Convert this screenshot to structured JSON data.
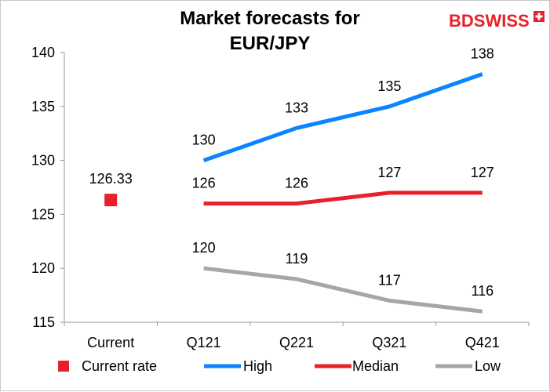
{
  "brand": {
    "logo_part1": "BD",
    "logo_part2": "SWISS",
    "logo_color": "#e8202a"
  },
  "chart_data": {
    "type": "line",
    "title": "Market forecasts for EUR/JPY",
    "title_lines": [
      "Market forecasts for",
      "EUR/JPY"
    ],
    "categories": [
      "Current",
      "Q121",
      "Q221",
      "Q321",
      "Q421"
    ],
    "ylim": [
      115,
      140
    ],
    "yticks": [
      115,
      120,
      125,
      130,
      135,
      140
    ],
    "grid": false,
    "legend_position": "bottom",
    "series": [
      {
        "name": "Current rate",
        "kind": "marker",
        "color": "#e8202a",
        "values": [
          126.33,
          null,
          null,
          null,
          null
        ],
        "labels": [
          "126.33",
          null,
          null,
          null,
          null
        ]
      },
      {
        "name": "High",
        "kind": "line",
        "color": "#0a84ff",
        "values": [
          null,
          130,
          133,
          135,
          138
        ],
        "labels": [
          null,
          "130",
          "133",
          "135",
          "138"
        ]
      },
      {
        "name": "Median",
        "kind": "line",
        "color": "#e8202a",
        "values": [
          null,
          126,
          126,
          127,
          127
        ],
        "labels": [
          null,
          "126",
          "126",
          "127",
          "127"
        ]
      },
      {
        "name": "Low",
        "kind": "line",
        "color": "#a6a6a6",
        "values": [
          null,
          120,
          119,
          117,
          116
        ],
        "labels": [
          null,
          "120",
          "119",
          "117",
          "116"
        ]
      }
    ]
  }
}
